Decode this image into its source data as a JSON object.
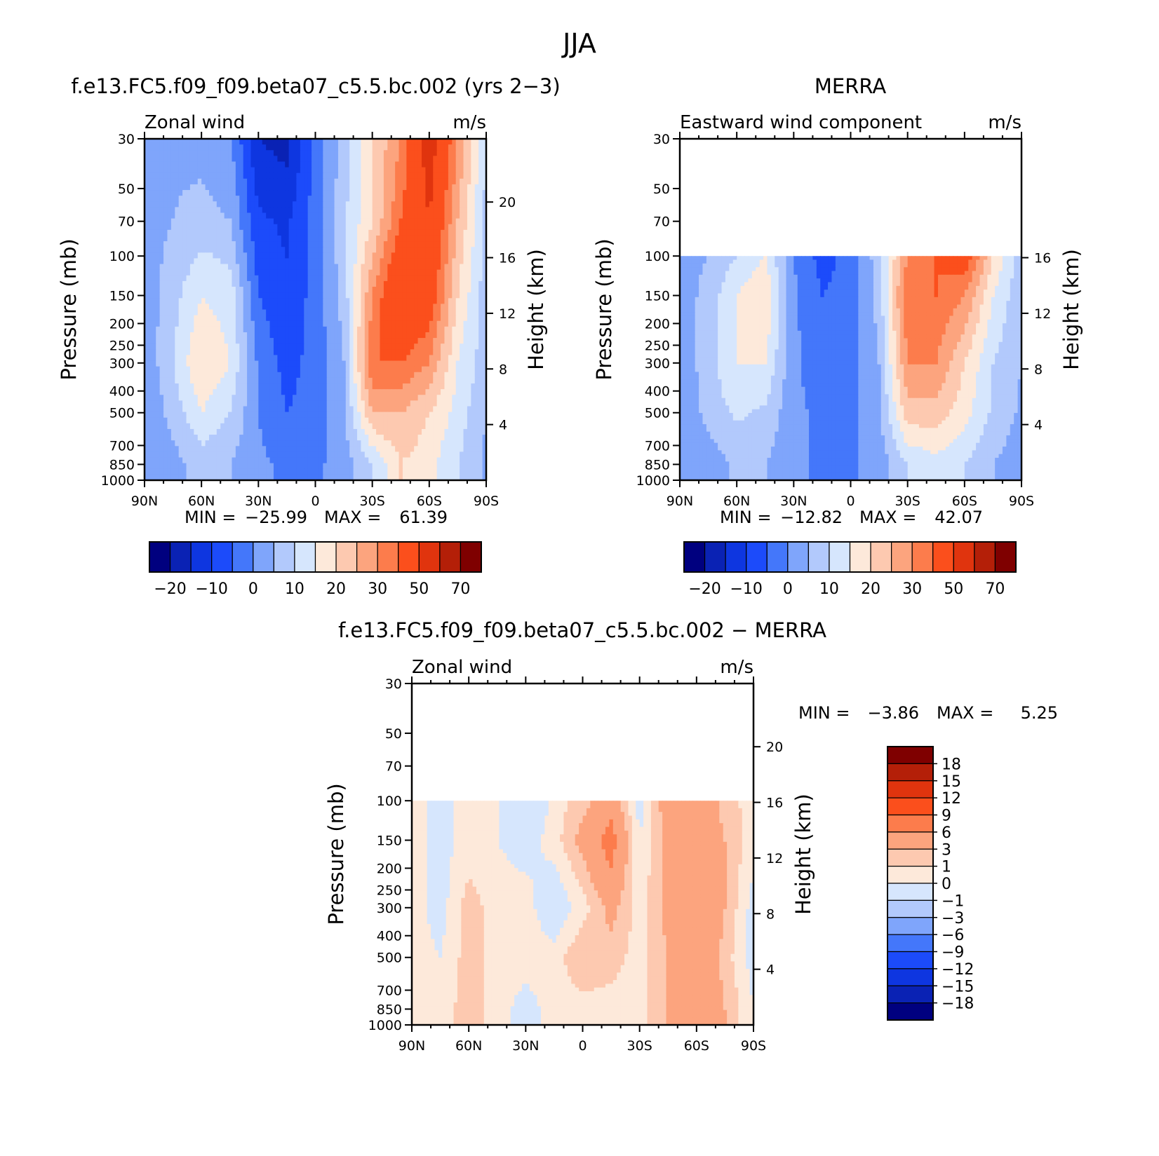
{
  "season": "JJA",
  "chart_data": [
    {
      "type": "heatmap",
      "id": "model",
      "title": "f.e13.FC5.f09_f09.beta07_c5.5.bc.002 (yrs 2-3)",
      "left_label": "Zonal wind",
      "units": "m/s",
      "ylabel": "Pressure (mb)",
      "ylabel2": "Height (km)",
      "x_ticks": [
        "90N",
        "60N",
        "30N",
        "0",
        "30S",
        "60S",
        "90S"
      ],
      "y_ticks": [
        "30",
        "50",
        "70",
        "100",
        "150",
        "200",
        "250",
        "300",
        "400",
        "500",
        "700",
        "850",
        "1000"
      ],
      "height_ticks": [
        "20",
        "16",
        "12",
        "8",
        "4"
      ],
      "xlim": [
        90,
        -90
      ],
      "ylim": [
        1000,
        30
      ],
      "y_scale": "log",
      "data_top_mb": 30,
      "stats": {
        "min_label": "MIN =",
        "min": "-25.99",
        "max_label": "MAX =",
        "max": "61.39"
      },
      "contour_levels": [
        -25,
        -20,
        -15,
        -10,
        -5,
        0,
        5,
        10,
        15,
        20,
        25,
        30,
        40,
        50,
        60,
        70
      ],
      "colorbar_labels": [
        "-20",
        "-10",
        "0",
        "10",
        "20",
        "30",
        "50",
        "70"
      ],
      "colorbar_position": "bottom",
      "lat_values": [
        90,
        75,
        60,
        45,
        30,
        15,
        0,
        -15,
        -30,
        -45,
        -60,
        -75,
        -90
      ],
      "plev_values": [
        30,
        70,
        150,
        300,
        500,
        850
      ],
      "field": [
        [
          -2,
          -1,
          -2,
          -4,
          -20,
          -22,
          -8,
          2,
          15,
          25,
          45,
          25,
          5
        ],
        [
          -2,
          0,
          2,
          0,
          -14,
          -16,
          -8,
          4,
          15,
          30,
          40,
          20,
          3
        ],
        [
          -3,
          3,
          10,
          8,
          -10,
          -14,
          -8,
          2,
          25,
          40,
          35,
          15,
          2
        ],
        [
          -4,
          5,
          15,
          10,
          -6,
          -12,
          -8,
          0,
          30,
          30,
          25,
          10,
          2
        ],
        [
          -5,
          2,
          10,
          5,
          -5,
          -10,
          -8,
          -1,
          20,
          20,
          15,
          8,
          0
        ],
        [
          -5,
          -2,
          2,
          0,
          -4,
          -6,
          -6,
          -3,
          5,
          15,
          12,
          5,
          -1
        ]
      ]
    },
    {
      "type": "heatmap",
      "id": "obs",
      "title": "MERRA",
      "left_label": "Eastward wind component",
      "units": "m/s",
      "ylabel": "Pressure (mb)",
      "ylabel2": "Height (km)",
      "x_ticks": [
        "90N",
        "60N",
        "30N",
        "0",
        "30S",
        "60S",
        "90S"
      ],
      "y_ticks": [
        "30",
        "50",
        "70",
        "100",
        "150",
        "200",
        "250",
        "300",
        "400",
        "500",
        "700",
        "850",
        "1000"
      ],
      "height_ticks": [
        "16",
        "12",
        "8",
        "4"
      ],
      "xlim": [
        90,
        -90
      ],
      "ylim": [
        1000,
        30
      ],
      "y_scale": "log",
      "data_top_mb": 100,
      "stats": {
        "min_label": "MIN =",
        "min": "-12.82",
        "max_label": "MAX =",
        "max": "42.07"
      },
      "contour_levels": [
        -25,
        -20,
        -15,
        -10,
        -5,
        0,
        5,
        10,
        15,
        20,
        25,
        30,
        40,
        50,
        60,
        70
      ],
      "colorbar_labels": [
        "-20",
        "-10",
        "0",
        "10",
        "20",
        "30",
        "50",
        "70"
      ],
      "colorbar_position": "bottom",
      "lat_values": [
        90,
        75,
        60,
        45,
        30,
        15,
        0,
        -15,
        -30,
        -45,
        -60,
        -75,
        -90
      ],
      "plev_values": [
        100,
        150,
        300,
        500,
        850
      ],
      "field": [
        [
          -2,
          0,
          5,
          10,
          -5,
          -12,
          -8,
          3,
          25,
          30,
          35,
          15,
          2
        ],
        [
          -3,
          2,
          10,
          15,
          -4,
          -10,
          -8,
          2,
          30,
          30,
          25,
          10,
          1
        ],
        [
          -4,
          3,
          10,
          10,
          -4,
          -8,
          -7,
          0,
          25,
          25,
          15,
          5,
          0
        ],
        [
          -5,
          2,
          6,
          4,
          -4,
          -6,
          -6,
          -1,
          18,
          18,
          12,
          4,
          -1
        ],
        [
          -5,
          -3,
          1,
          0,
          -4,
          -6,
          -6,
          -3,
          5,
          8,
          5,
          0,
          -3
        ]
      ]
    },
    {
      "type": "heatmap",
      "id": "diff",
      "title": "f.e13.FC5.f09_f09.beta07_c5.5.bc.002 - MERRA",
      "left_label": "Zonal wind",
      "units": "m/s",
      "ylabel": "Pressure (mb)",
      "ylabel2": "Height (km)",
      "x_ticks": [
        "90N",
        "60N",
        "30N",
        "0",
        "30S",
        "60S",
        "90S"
      ],
      "y_ticks": [
        "30",
        "50",
        "70",
        "100",
        "150",
        "200",
        "250",
        "300",
        "400",
        "500",
        "700",
        "850",
        "1000"
      ],
      "height_ticks": [
        "20",
        "16",
        "12",
        "8",
        "4"
      ],
      "xlim": [
        90,
        -90
      ],
      "ylim": [
        1000,
        30
      ],
      "y_scale": "log",
      "data_top_mb": 100,
      "stats": {
        "min_label": "MIN =",
        "min": "-3.86",
        "max_label": "MAX =",
        "max": "5.25"
      },
      "contour_levels": [
        -21,
        -18,
        -15,
        -12,
        -9,
        -6,
        -3,
        -1,
        0,
        1,
        3,
        6,
        9,
        12,
        15,
        18,
        21
      ],
      "colorbar_labels": [
        "18",
        "15",
        "12",
        "9",
        "6",
        "3",
        "1",
        "0",
        "-1",
        "-3",
        "-6",
        "-9",
        "-12",
        "-15",
        "-18"
      ],
      "colorbar_position": "right",
      "lat_values": [
        90,
        75,
        60,
        45,
        30,
        15,
        0,
        -15,
        -30,
        -45,
        -60,
        -75,
        -90
      ],
      "plev_values": [
        100,
        150,
        300,
        500,
        850
      ],
      "field": [
        [
          -0.5,
          -1.5,
          -0.5,
          -1,
          -3,
          -0.5,
          0.5,
          2,
          -1.5,
          2,
          2.5,
          0.5,
          -0.5
        ],
        [
          -0.5,
          -1.5,
          -0.5,
          -1,
          -1.5,
          -0.5,
          1.5,
          4,
          -1,
          1.5,
          2.5,
          1,
          -0.5
        ],
        [
          -0.5,
          -1.5,
          0.5,
          -0.5,
          -0.5,
          -2,
          -0.5,
          1.5,
          -0.5,
          1.5,
          3,
          1,
          -1.5
        ],
        [
          -0.5,
          -1,
          0.5,
          -0.5,
          -0.5,
          -0.5,
          1,
          0.5,
          -0.5,
          1,
          3,
          0.5,
          -1.5
        ],
        [
          -0.5,
          -0.5,
          0.5,
          -0.5,
          -1.5,
          -0.5,
          -0.5,
          -0.5,
          -0.5,
          1,
          2.5,
          1,
          -1
        ]
      ]
    }
  ],
  "colors": {
    "model_obs_palette": [
      "#00007f",
      "#0a22b4",
      "#0e36e0",
      "#1c4bfa",
      "#4477fa",
      "#7fa5fb",
      "#b2c9fc",
      "#d6e6fd",
      "#fde9da",
      "#fdc9b0",
      "#fca47e",
      "#fc7c4c",
      "#fb4f1c",
      "#e0340e",
      "#b41f08",
      "#7f0000"
    ],
    "diff_palette": [
      "#00007f",
      "#0a22b4",
      "#0e36e0",
      "#1c4bfa",
      "#4477fa",
      "#7fa5fb",
      "#b2c9fc",
      "#d6e6fd",
      "#fde9da",
      "#fdc9b0",
      "#fca47e",
      "#fc7c4c",
      "#fb4f1c",
      "#e0340e",
      "#b41f08",
      "#7f0000"
    ]
  }
}
